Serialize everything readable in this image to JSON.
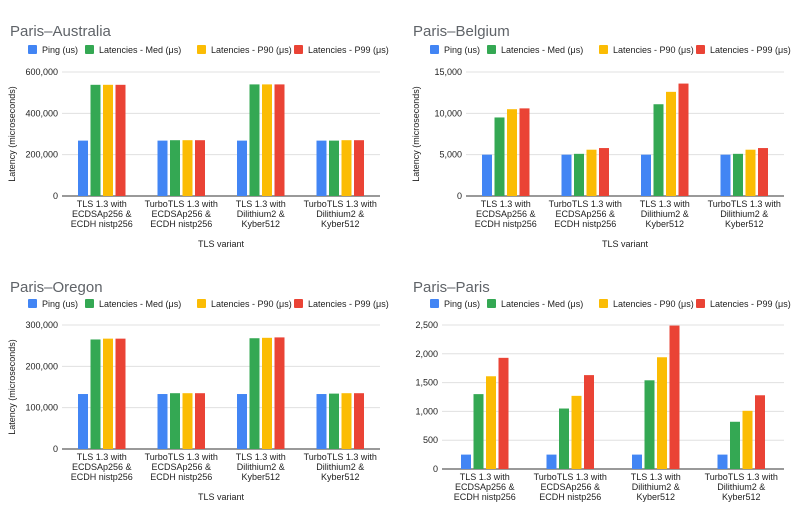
{
  "palette": {
    "ping": "#4285f4",
    "med": "#34a853",
    "p90": "#fbbc04",
    "p99": "#ea4335",
    "grid": "#e0e0e0",
    "axis": "#333333",
    "title": "#5f6368",
    "text": "#222222"
  },
  "chart_data": [
    {
      "type": "bar",
      "title": "Paris–Australia",
      "xlabel": "TLS variant",
      "ylabel": "Latency (microseconds)",
      "ylim": [
        0,
        600000
      ],
      "yticks": [
        0,
        200000,
        400000,
        600000
      ],
      "ytick_labels": [
        "0",
        "200,000",
        "400,000",
        "600,000"
      ],
      "grid": true,
      "legend": "top",
      "categories": [
        [
          "TLS 1.3 with",
          "ECDSAp256 &",
          "ECDH nistp256"
        ],
        [
          "TurboTLS 1.3 with",
          "ECDSAp256 &",
          "ECDH nistp256"
        ],
        [
          "TLS 1.3 with",
          "Dilithium2 &",
          "Kyber512"
        ],
        [
          "TurboTLS 1.3 with",
          "Dilithium2 &",
          "Kyber512"
        ]
      ],
      "series": [
        {
          "name": "Ping (us)",
          "color_key": "ping",
          "values": [
            268000,
            268000,
            268000,
            268000
          ]
        },
        {
          "name": "Latencies - Med (μs)",
          "color_key": "med",
          "values": [
            538000,
            270000,
            540000,
            268000
          ]
        },
        {
          "name": "Latencies - P90 (μs)",
          "color_key": "p90",
          "values": [
            538000,
            270000,
            540000,
            270000
          ]
        },
        {
          "name": "Latencies - P99 (μs)",
          "color_key": "p99",
          "values": [
            538000,
            270000,
            540000,
            270000
          ]
        }
      ]
    },
    {
      "type": "bar",
      "title": "Paris–Belgium",
      "xlabel": "TLS variant",
      "ylabel": "Latency (microseconds)",
      "ylim": [
        0,
        15000
      ],
      "yticks": [
        0,
        5000,
        10000,
        15000
      ],
      "ytick_labels": [
        "0",
        "5,000",
        "10,000",
        "15,000"
      ],
      "grid": true,
      "legend": "top",
      "categories": [
        [
          "TLS 1.3 with",
          "ECDSAp256 &",
          "ECDH nistp256"
        ],
        [
          "TurboTLS 1.3 with",
          "ECDSAp256 &",
          "ECDH nistp256"
        ],
        [
          "TLS 1.3 with",
          "Dilithium2 &",
          "Kyber512"
        ],
        [
          "TurboTLS 1.3 with",
          "Dilithium2 &",
          "Kyber512"
        ]
      ],
      "series": [
        {
          "name": "Ping (us)",
          "color_key": "ping",
          "values": [
            5000,
            5000,
            5000,
            5000
          ]
        },
        {
          "name": "Latencies - Med (μs)",
          "color_key": "med",
          "values": [
            9500,
            5100,
            11100,
            5100
          ]
        },
        {
          "name": "Latencies - P90 (μs)",
          "color_key": "p90",
          "values": [
            10500,
            5600,
            12600,
            5600
          ]
        },
        {
          "name": "Latencies - P99 (μs)",
          "color_key": "p99",
          "values": [
            10600,
            5800,
            13600,
            5800
          ]
        }
      ]
    },
    {
      "type": "bar",
      "title": "Paris–Oregon",
      "xlabel": "TLS variant",
      "ylabel": "Latency (microseconds)",
      "ylim": [
        0,
        300000
      ],
      "yticks": [
        0,
        100000,
        200000,
        300000
      ],
      "ytick_labels": [
        "0",
        "100,000",
        "200,000",
        "300,000"
      ],
      "grid": true,
      "legend": "top",
      "categories": [
        [
          "TLS 1.3 with",
          "ECDSAp256 &",
          "ECDH nistp256"
        ],
        [
          "TurboTLS 1.3 with",
          "ECDSAp256 &",
          "ECDH nistp256"
        ],
        [
          "TLS 1.3 with",
          "Dilithium2 &",
          "Kyber512"
        ],
        [
          "TurboTLS 1.3 with",
          "Dilithium2 &",
          "Kyber512"
        ]
      ],
      "series": [
        {
          "name": "Ping (us)",
          "color_key": "ping",
          "values": [
            133000,
            133000,
            133000,
            133000
          ]
        },
        {
          "name": "Latencies - Med (μs)",
          "color_key": "med",
          "values": [
            265000,
            135000,
            268000,
            134000
          ]
        },
        {
          "name": "Latencies - P90 (μs)",
          "color_key": "p90",
          "values": [
            267000,
            135000,
            269000,
            135000
          ]
        },
        {
          "name": "Latencies - P99 (μs)",
          "color_key": "p99",
          "values": [
            267000,
            135000,
            270000,
            135000
          ]
        }
      ]
    },
    {
      "type": "bar",
      "title": "Paris–Paris",
      "xlabel": "",
      "ylabel": "",
      "ylim": [
        0,
        2500
      ],
      "yticks": [
        0,
        500,
        1000,
        1500,
        2000,
        2500
      ],
      "ytick_labels": [
        "0",
        "500",
        "1,000",
        "1,500",
        "2,000",
        "2,500"
      ],
      "grid": true,
      "legend": "top",
      "categories": [
        [
          "TLS 1.3 with",
          "ECDSAp256 &",
          "ECDH nistp256"
        ],
        [
          "TurboTLS 1.3 with",
          "ECDSAp256 &",
          "ECDH nistp256"
        ],
        [
          "TLS 1.3 with",
          "Dilithium2 &",
          "Kyber512"
        ],
        [
          "TurboTLS 1.3 with",
          "Dilithium2 &",
          "Kyber512"
        ]
      ],
      "series": [
        {
          "name": "Ping (us)",
          "color_key": "ping",
          "values": [
            250,
            250,
            250,
            250
          ]
        },
        {
          "name": "Latencies - Med (μs)",
          "color_key": "med",
          "values": [
            1300,
            1050,
            1540,
            820
          ]
        },
        {
          "name": "Latencies - P90 (μs)",
          "color_key": "p90",
          "values": [
            1610,
            1270,
            1940,
            1010
          ]
        },
        {
          "name": "Latencies - P99 (μs)",
          "color_key": "p99",
          "values": [
            1930,
            1630,
            2490,
            1280
          ]
        }
      ]
    }
  ]
}
